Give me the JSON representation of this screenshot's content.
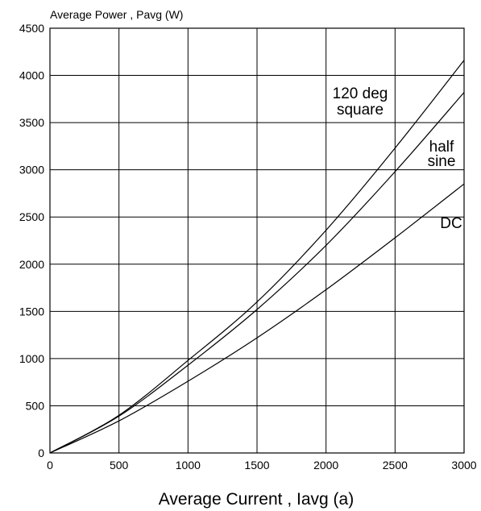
{
  "chart_data": {
    "type": "line",
    "title": "",
    "ylabel": "Average Power , Pavg (W)",
    "xlabel": "Average Current , Iavg (a)",
    "xlim": [
      0,
      3000
    ],
    "ylim": [
      0,
      4500
    ],
    "x_ticks": [
      "0",
      "500",
      "1000",
      "1500",
      "2000",
      "2500",
      "3000"
    ],
    "y_ticks": [
      "0",
      "500",
      "1000",
      "1500",
      "2000",
      "2500",
      "3000",
      "3500",
      "4000",
      "4500"
    ],
    "grid": true,
    "series": [
      {
        "name": "120 deg square",
        "label_lines": [
          "120 deg",
          "square"
        ],
        "x": [
          0,
          500,
          1000,
          1500,
          2000,
          2500,
          3000
        ],
        "y": [
          0,
          400,
          980,
          1600,
          2360,
          3230,
          4160
        ]
      },
      {
        "name": "half sine",
        "label_lines": [
          "half",
          "sine"
        ],
        "x": [
          0,
          500,
          1000,
          1500,
          2000,
          2500,
          3000
        ],
        "y": [
          0,
          390,
          930,
          1520,
          2200,
          2980,
          3820
        ]
      },
      {
        "name": "DC",
        "label_lines": [
          "DC"
        ],
        "x": [
          0,
          500,
          1000,
          1500,
          2000,
          2500,
          3000
        ],
        "y": [
          0,
          340,
          760,
          1220,
          1730,
          2280,
          2850
        ]
      }
    ]
  }
}
